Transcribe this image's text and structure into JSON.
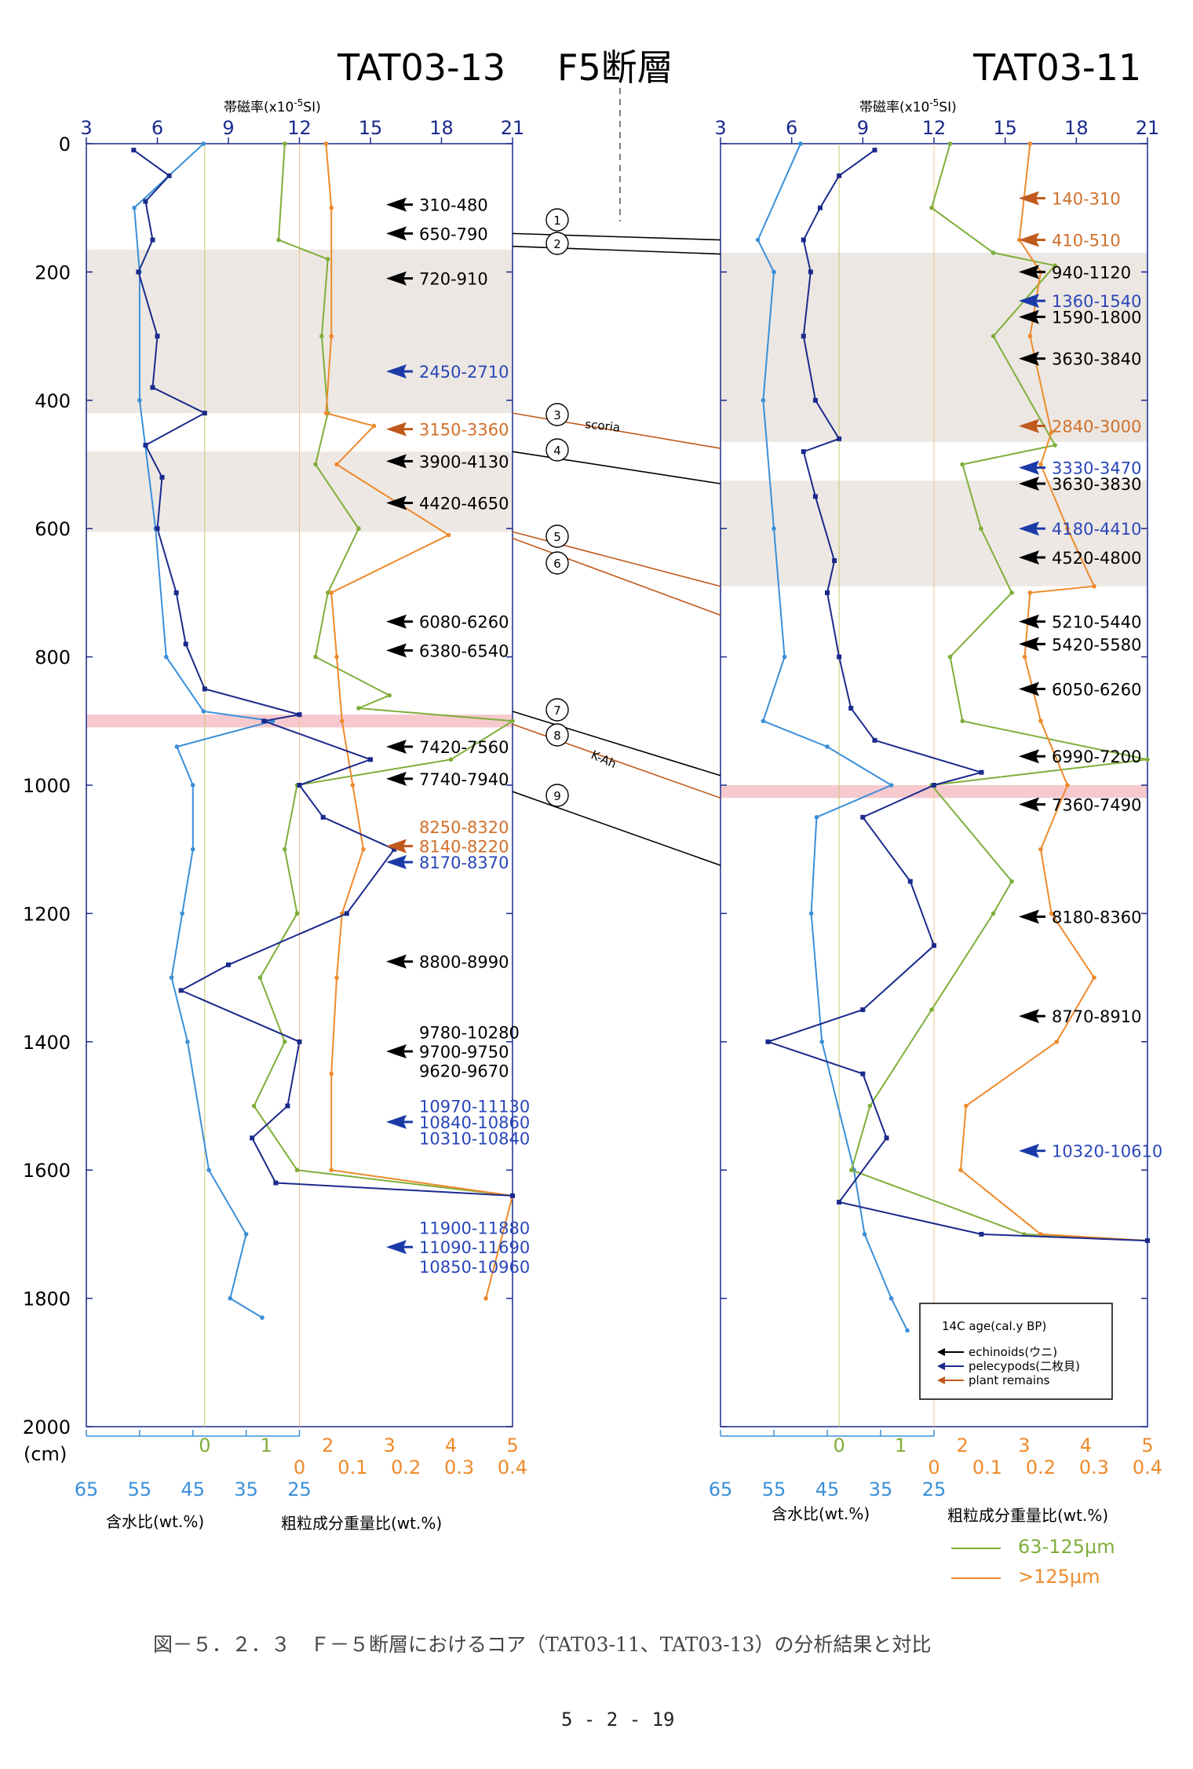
{
  "header": {
    "left_core": "TAT03-13",
    "fault": "F5断層",
    "right_core": "TAT03-11",
    "mag_label": "帯磁率(x10",
    "mag_sup": "-5",
    "mag_unit": "SI)"
  },
  "axes": {
    "mag_ticks": [
      "3",
      "6",
      "9",
      "12",
      "15",
      "18",
      "21"
    ],
    "depth_ticks": [
      "0",
      "200",
      "400",
      "600",
      "800",
      "1000",
      "1200",
      "1400",
      "1600",
      "1800",
      "2000"
    ],
    "depth_unit": "(cm)",
    "coarse1_ticks": [
      "0",
      "1",
      "2",
      "3",
      "4",
      "5"
    ],
    "coarse2_ticks": [
      "0",
      "0.1",
      "0.2",
      "0.3",
      "0.4"
    ],
    "water_ticks": [
      "65",
      "55",
      "45",
      "35",
      "25"
    ],
    "water_label": "含水比(wt.%)",
    "coarse_label": "粗粒成分重量比(wt.%)"
  },
  "legend": {
    "title": "14C age(cal.y BP)",
    "items": [
      {
        "label": "echinoids(ウニ)",
        "color": "#000000"
      },
      {
        "label": "pelecypods(二枚貝)",
        "color": "#1a2a8c"
      },
      {
        "label": "plant remains",
        "color": "#c05a1c"
      }
    ],
    "fine_label": "63-125μm",
    "coarse_label": ">125μm"
  },
  "correlation": {
    "numbers": [
      "1",
      "2",
      "3",
      "4",
      "5",
      "6",
      "7",
      "8",
      "9"
    ],
    "scoria": "scoria",
    "kah": "K-Ah"
  },
  "colors": {
    "susceptibility": "#1a2a8c",
    "water": "#3a8fd8",
    "fine": "#7fae3a",
    "coarse": "#ee8a2c",
    "echinoid": "#000000",
    "pelecypod": "#1a3aa8",
    "plant": "#c05a1c"
  },
  "caption": "図－５．２．３　Ｆ－５断層におけるコア（TAT03-11、TAT03-13）の分析結果と対比",
  "page_number": "5 - 2 - 19",
  "chart_data": [
    {
      "type": "line",
      "name": "TAT03-13",
      "y_axis": "depth (cm)",
      "ylim": [
        0,
        2000
      ],
      "mag_xlim": [
        3,
        21
      ],
      "water_xlim": [
        65,
        25
      ],
      "fine_xlim": [
        0,
        5
      ],
      "coarse_xlim": [
        0,
        0.4
      ],
      "ages": [
        {
          "depth": 95,
          "label": "310-480",
          "kind": "echinoid"
        },
        {
          "depth": 140,
          "label": "650-790",
          "kind": "echinoid"
        },
        {
          "depth": 210,
          "label": "720-910",
          "kind": "echinoid"
        },
        {
          "depth": 355,
          "label": "2450-2710",
          "kind": "pelecypod"
        },
        {
          "depth": 445,
          "label": "3150-3360",
          "kind": "plant"
        },
        {
          "depth": 495,
          "label": "3900-4130",
          "kind": "echinoid"
        },
        {
          "depth": 560,
          "label": "4420-4650",
          "kind": "echinoid"
        },
        {
          "depth": 745,
          "label": "6080-6260",
          "kind": "echinoid"
        },
        {
          "depth": 790,
          "label": "6380-6540",
          "kind": "echinoid"
        },
        {
          "depth": 940,
          "label": "7420-7560",
          "kind": "echinoid"
        },
        {
          "depth": 990,
          "label": "7740-7940",
          "kind": "echinoid"
        },
        {
          "depth": 1065,
          "label": "8250-8320",
          "kind": "plant",
          "noarrow": true
        },
        {
          "depth": 1095,
          "label": "8140-8220",
          "kind": "plant"
        },
        {
          "depth": 1120,
          "label": "8170-8370",
          "kind": "pelecypod"
        },
        {
          "depth": 1275,
          "label": "8800-8990",
          "kind": "echinoid"
        },
        {
          "depth": 1385,
          "label": "9780-10280",
          "kind": "echinoid",
          "noarrow": true
        },
        {
          "depth": 1415,
          "label": "9700-9750",
          "kind": "echinoid"
        },
        {
          "depth": 1445,
          "label": "9620-9670",
          "kind": "echinoid",
          "noarrow": true
        },
        {
          "depth": 1500,
          "label": "10970-11130",
          "kind": "pelecypod",
          "noarrow": true
        },
        {
          "depth": 1525,
          "label": "10840-10860",
          "kind": "pelecypod"
        },
        {
          "depth": 1550,
          "label": "10310-10840",
          "kind": "pelecypod",
          "noarrow": true
        },
        {
          "depth": 1690,
          "label": "11900-11880",
          "kind": "pelecypod",
          "noarrow": true
        },
        {
          "depth": 1720,
          "label": "11090-11690",
          "kind": "pelecypod"
        },
        {
          "depth": 1750,
          "label": "10850-10960",
          "kind": "pelecypod",
          "noarrow": true
        }
      ],
      "shaded_intervals": [
        [
          165,
          420
        ],
        [
          480,
          605
        ],
        [
          890,
          910
        ]
      ],
      "susceptibility": [
        [
          10,
          5
        ],
        [
          50,
          6.5
        ],
        [
          90,
          5.5
        ],
        [
          150,
          5.8
        ],
        [
          200,
          5.2
        ],
        [
          300,
          6
        ],
        [
          380,
          5.8
        ],
        [
          420,
          8
        ],
        [
          470,
          5.5
        ],
        [
          520,
          6.2
        ],
        [
          600,
          6
        ],
        [
          700,
          6.8
        ],
        [
          780,
          7.2
        ],
        [
          850,
          8
        ],
        [
          890,
          12
        ],
        [
          900,
          10.5
        ],
        [
          960,
          15
        ],
        [
          1000,
          12
        ],
        [
          1050,
          13
        ],
        [
          1100,
          16
        ],
        [
          1200,
          14
        ],
        [
          1280,
          9
        ],
        [
          1320,
          7
        ],
        [
          1400,
          12
        ],
        [
          1500,
          11.5
        ],
        [
          1550,
          10
        ],
        [
          1620,
          11
        ],
        [
          1640,
          21
        ]
      ],
      "water": [
        [
          0,
          43
        ],
        [
          100,
          56
        ],
        [
          200,
          55
        ],
        [
          400,
          55
        ],
        [
          600,
          52
        ],
        [
          800,
          50
        ],
        [
          885,
          43
        ],
        [
          900,
          30
        ],
        [
          940,
          48
        ],
        [
          1000,
          45
        ],
        [
          1100,
          45
        ],
        [
          1200,
          47
        ],
        [
          1300,
          49
        ],
        [
          1400,
          46
        ],
        [
          1600,
          42
        ],
        [
          1700,
          35
        ],
        [
          1800,
          38
        ],
        [
          1830,
          32
        ]
      ],
      "fine": [
        [
          0,
          1.3
        ],
        [
          150,
          1.2
        ],
        [
          180,
          2
        ],
        [
          300,
          1.9
        ],
        [
          420,
          2
        ],
        [
          500,
          1.8
        ],
        [
          600,
          2.5
        ],
        [
          700,
          2
        ],
        [
          800,
          1.8
        ],
        [
          860,
          3
        ],
        [
          880,
          2.5
        ],
        [
          900,
          5
        ],
        [
          960,
          4
        ],
        [
          1000,
          1.5
        ],
        [
          1100,
          1.3
        ],
        [
          1200,
          1.5
        ],
        [
          1300,
          0.9
        ],
        [
          1400,
          1.3
        ],
        [
          1500,
          0.8
        ],
        [
          1600,
          1.5
        ],
        [
          1640,
          5
        ]
      ],
      "coarse": [
        [
          0,
          0.05
        ],
        [
          100,
          0.06
        ],
        [
          300,
          0.06
        ],
        [
          420,
          0.05
        ],
        [
          440,
          0.14
        ],
        [
          500,
          0.07
        ],
        [
          610,
          0.28
        ],
        [
          700,
          0.06
        ],
        [
          800,
          0.07
        ],
        [
          900,
          0.08
        ],
        [
          1000,
          0.1
        ],
        [
          1100,
          0.12
        ],
        [
          1200,
          0.08
        ],
        [
          1300,
          0.07
        ],
        [
          1450,
          0.06
        ],
        [
          1600,
          0.06
        ],
        [
          1640,
          0.4
        ],
        [
          1800,
          0.35
        ]
      ]
    },
    {
      "type": "line",
      "name": "TAT03-11",
      "y_axis": "depth (cm)",
      "ylim": [
        0,
        2000
      ],
      "mag_xlim": [
        3,
        21
      ],
      "water_xlim": [
        65,
        25
      ],
      "fine_xlim": [
        0,
        5
      ],
      "coarse_xlim": [
        0,
        0.4
      ],
      "ages": [
        {
          "depth": 85,
          "label": "140-310",
          "kind": "plant"
        },
        {
          "depth": 150,
          "label": "410-510",
          "kind": "plant"
        },
        {
          "depth": 200,
          "label": "940-1120",
          "kind": "echinoid"
        },
        {
          "depth": 245,
          "label": "1360-1540",
          "kind": "pelecypod"
        },
        {
          "depth": 270,
          "label": "1590-1800",
          "kind": "echinoid"
        },
        {
          "depth": 335,
          "label": "3630-3840",
          "kind": "echinoid"
        },
        {
          "depth": 440,
          "label": "2840-3000",
          "kind": "plant"
        },
        {
          "depth": 505,
          "label": "3330-3470",
          "kind": "pelecypod"
        },
        {
          "depth": 530,
          "label": "3630-3830",
          "kind": "echinoid"
        },
        {
          "depth": 600,
          "label": "4180-4410",
          "kind": "pelecypod"
        },
        {
          "depth": 645,
          "label": "4520-4800",
          "kind": "echinoid"
        },
        {
          "depth": 745,
          "label": "5210-5440",
          "kind": "echinoid"
        },
        {
          "depth": 780,
          "label": "5420-5580",
          "kind": "echinoid"
        },
        {
          "depth": 850,
          "label": "6050-6260",
          "kind": "echinoid"
        },
        {
          "depth": 955,
          "label": "6990-7200",
          "kind": "echinoid"
        },
        {
          "depth": 1030,
          "label": "7360-7490",
          "kind": "echinoid"
        },
        {
          "depth": 1205,
          "label": "8180-8360",
          "kind": "echinoid"
        },
        {
          "depth": 1360,
          "label": "8770-8910",
          "kind": "echinoid"
        },
        {
          "depth": 1570,
          "label": "10320-10610",
          "kind": "pelecypod"
        }
      ],
      "shaded_intervals": [
        [
          170,
          465
        ],
        [
          525,
          690
        ],
        [
          1000,
          1020
        ]
      ],
      "susceptibility": [
        [
          10,
          9.5
        ],
        [
          50,
          8
        ],
        [
          100,
          7.2
        ],
        [
          150,
          6.5
        ],
        [
          200,
          6.8
        ],
        [
          300,
          6.5
        ],
        [
          400,
          7
        ],
        [
          460,
          8
        ],
        [
          480,
          6.5
        ],
        [
          550,
          7
        ],
        [
          650,
          7.8
        ],
        [
          700,
          7.5
        ],
        [
          800,
          8
        ],
        [
          880,
          8.5
        ],
        [
          930,
          9.5
        ],
        [
          980,
          14
        ],
        [
          1000,
          12
        ],
        [
          1050,
          9
        ],
        [
          1150,
          11
        ],
        [
          1250,
          12
        ],
        [
          1350,
          9
        ],
        [
          1400,
          5
        ],
        [
          1450,
          9
        ],
        [
          1550,
          10
        ],
        [
          1650,
          8
        ],
        [
          1700,
          14
        ],
        [
          1710,
          21
        ]
      ],
      "water": [
        [
          0,
          50
        ],
        [
          150,
          58
        ],
        [
          200,
          55
        ],
        [
          400,
          57
        ],
        [
          600,
          55
        ],
        [
          800,
          53
        ],
        [
          900,
          57
        ],
        [
          940,
          45
        ],
        [
          1000,
          33
        ],
        [
          1050,
          47
        ],
        [
          1200,
          48
        ],
        [
          1400,
          46
        ],
        [
          1600,
          40
        ],
        [
          1700,
          38
        ],
        [
          1800,
          33
        ],
        [
          1850,
          30
        ]
      ],
      "fine": [
        [
          0,
          1.8
        ],
        [
          100,
          1.5
        ],
        [
          170,
          2.5
        ],
        [
          190,
          3.5
        ],
        [
          300,
          2.5
        ],
        [
          470,
          3.5
        ],
        [
          500,
          2
        ],
        [
          600,
          2.3
        ],
        [
          700,
          2.8
        ],
        [
          800,
          1.8
        ],
        [
          900,
          2
        ],
        [
          960,
          5
        ],
        [
          1000,
          1.5
        ],
        [
          1150,
          2.8
        ],
        [
          1200,
          2.5
        ],
        [
          1350,
          1.5
        ],
        [
          1500,
          0.5
        ],
        [
          1600,
          0.2
        ],
        [
          1700,
          3
        ],
        [
          1710,
          5
        ]
      ],
      "coarse": [
        [
          0,
          0.18
        ],
        [
          150,
          0.16
        ],
        [
          200,
          0.2
        ],
        [
          300,
          0.18
        ],
        [
          450,
          0.22
        ],
        [
          500,
          0.2
        ],
        [
          600,
          0.25
        ],
        [
          690,
          0.3
        ],
        [
          700,
          0.18
        ],
        [
          800,
          0.17
        ],
        [
          900,
          0.2
        ],
        [
          1000,
          0.25
        ],
        [
          1100,
          0.2
        ],
        [
          1200,
          0.22
        ],
        [
          1300,
          0.3
        ],
        [
          1400,
          0.23
        ],
        [
          1500,
          0.06
        ],
        [
          1600,
          0.05
        ],
        [
          1700,
          0.2
        ],
        [
          1710,
          0.4
        ]
      ]
    }
  ]
}
